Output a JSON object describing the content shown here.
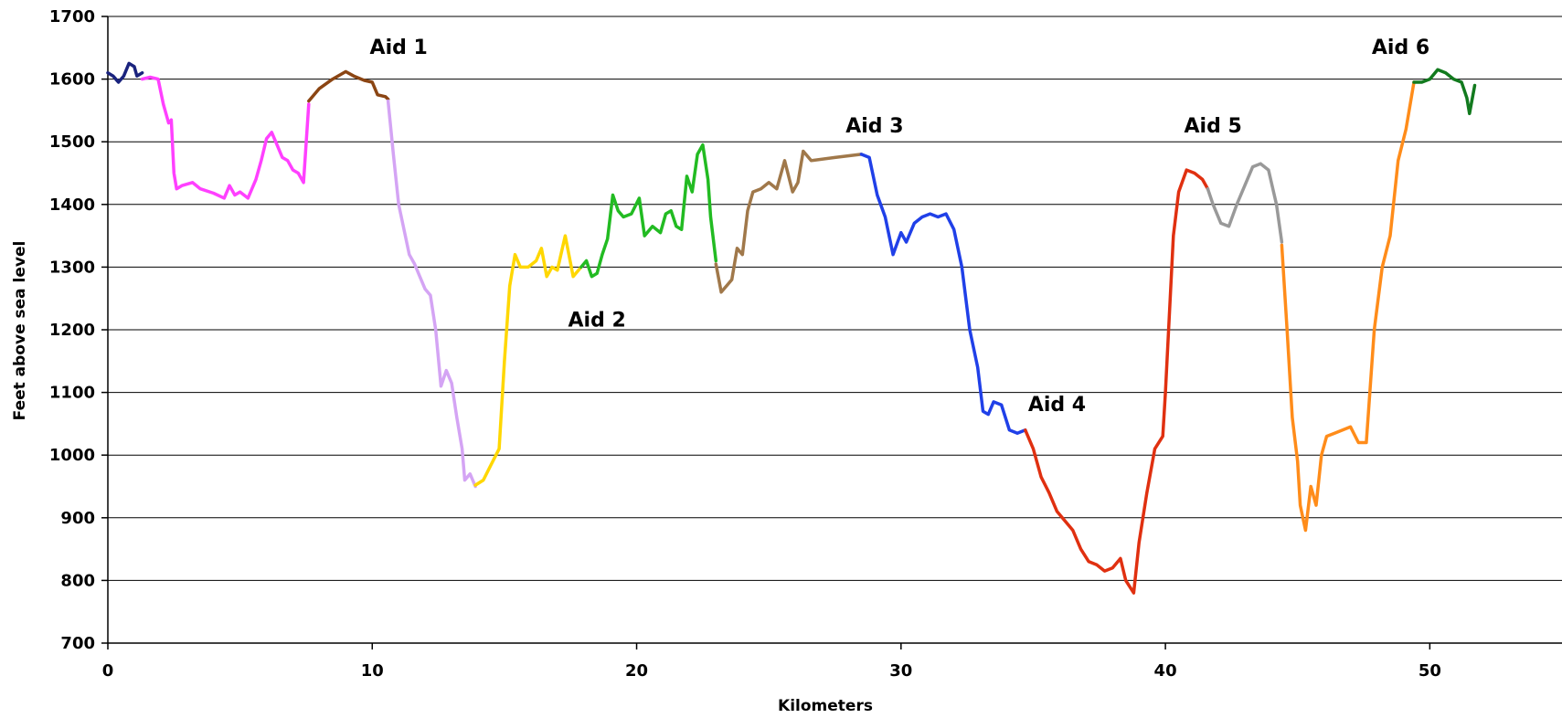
{
  "chart_data": {
    "type": "line",
    "title": "",
    "xlabel": "Kilometers",
    "ylabel": "Feet above sea level",
    "xlim": [
      0,
      55
    ],
    "ylim": [
      700,
      1700
    ],
    "x_ticks": [
      "0",
      "10",
      "20",
      "30",
      "40",
      "50"
    ],
    "x_tick_values": [
      0,
      10,
      20,
      30,
      40,
      50
    ],
    "y_ticks": [
      "700",
      "800",
      "900",
      "1000",
      "1100",
      "1200",
      "1300",
      "1400",
      "1500",
      "1600",
      "1700"
    ],
    "y_tick_values": [
      700,
      800,
      900,
      1000,
      1100,
      1200,
      1300,
      1400,
      1500,
      1600,
      1700
    ],
    "grid": "horizontal",
    "legend": "none",
    "annotations": [
      {
        "text": "Aid 1",
        "x": 11.0,
        "y": 1640
      },
      {
        "text": "Aid 2",
        "x": 18.5,
        "y": 1205
      },
      {
        "text": "Aid 3",
        "x": 29.0,
        "y": 1515
      },
      {
        "text": "Aid 4",
        "x": 35.9,
        "y": 1070
      },
      {
        "text": "Aid 5",
        "x": 41.8,
        "y": 1515
      },
      {
        "text": "Aid 6",
        "x": 48.9,
        "y": 1640
      }
    ],
    "series": [
      {
        "color": "#1a237e",
        "points": [
          [
            0,
            1610
          ],
          [
            0.2,
            1605
          ],
          [
            0.4,
            1595
          ],
          [
            0.6,
            1605
          ],
          [
            0.8,
            1625
          ],
          [
            1.0,
            1620
          ],
          [
            1.1,
            1605
          ],
          [
            1.3,
            1610
          ]
        ]
      },
      {
        "color": "#ff40ff",
        "points": [
          [
            1.3,
            1600
          ],
          [
            1.6,
            1603
          ],
          [
            1.9,
            1600
          ],
          [
            2.1,
            1560
          ],
          [
            2.3,
            1530
          ],
          [
            2.4,
            1535
          ],
          [
            2.5,
            1450
          ],
          [
            2.6,
            1425
          ],
          [
            2.8,
            1430
          ],
          [
            3.2,
            1435
          ],
          [
            3.5,
            1425
          ],
          [
            4.0,
            1418
          ],
          [
            4.4,
            1410
          ],
          [
            4.6,
            1430
          ],
          [
            4.8,
            1415
          ],
          [
            5.0,
            1420
          ],
          [
            5.3,
            1410
          ],
          [
            5.6,
            1440
          ],
          [
            5.8,
            1470
          ],
          [
            6.0,
            1505
          ],
          [
            6.2,
            1515
          ],
          [
            6.4,
            1495
          ],
          [
            6.6,
            1475
          ],
          [
            6.8,
            1470
          ],
          [
            7.0,
            1455
          ],
          [
            7.2,
            1450
          ],
          [
            7.4,
            1435
          ],
          [
            7.6,
            1560
          ]
        ]
      },
      {
        "color": "#8b4513",
        "points": [
          [
            7.6,
            1565
          ],
          [
            8.0,
            1585
          ],
          [
            8.5,
            1600
          ],
          [
            9.0,
            1612
          ],
          [
            9.3,
            1605
          ],
          [
            9.7,
            1598
          ],
          [
            10.0,
            1595
          ],
          [
            10.2,
            1575
          ],
          [
            10.5,
            1572
          ],
          [
            10.6,
            1568
          ]
        ]
      },
      {
        "color": "#d4a4f4",
        "points": [
          [
            10.6,
            1565
          ],
          [
            10.8,
            1480
          ],
          [
            11.0,
            1400
          ],
          [
            11.2,
            1360
          ],
          [
            11.4,
            1320
          ],
          [
            11.6,
            1305
          ],
          [
            11.8,
            1285
          ],
          [
            12.0,
            1265
          ],
          [
            12.2,
            1255
          ],
          [
            12.4,
            1200
          ],
          [
            12.6,
            1110
          ],
          [
            12.8,
            1135
          ],
          [
            13.0,
            1115
          ],
          [
            13.2,
            1060
          ],
          [
            13.4,
            1010
          ],
          [
            13.5,
            960
          ],
          [
            13.7,
            970
          ],
          [
            13.9,
            950
          ]
        ]
      },
      {
        "color": "#ffd700",
        "points": [
          [
            13.9,
            952
          ],
          [
            14.2,
            960
          ],
          [
            14.5,
            985
          ],
          [
            14.8,
            1010
          ],
          [
            15.0,
            1150
          ],
          [
            15.2,
            1270
          ],
          [
            15.4,
            1320
          ],
          [
            15.6,
            1300
          ],
          [
            15.9,
            1300
          ],
          [
            16.2,
            1310
          ],
          [
            16.4,
            1330
          ],
          [
            16.6,
            1285
          ],
          [
            16.8,
            1300
          ],
          [
            17.0,
            1295
          ],
          [
            17.3,
            1350
          ],
          [
            17.6,
            1285
          ],
          [
            17.9,
            1300
          ]
        ]
      },
      {
        "color": "#22bb22",
        "points": [
          [
            17.9,
            1300
          ],
          [
            18.1,
            1310
          ],
          [
            18.3,
            1285
          ],
          [
            18.5,
            1290
          ],
          [
            18.7,
            1320
          ],
          [
            18.9,
            1345
          ],
          [
            19.1,
            1415
          ],
          [
            19.3,
            1390
          ],
          [
            19.5,
            1380
          ],
          [
            19.8,
            1385
          ],
          [
            20.1,
            1410
          ],
          [
            20.3,
            1350
          ],
          [
            20.6,
            1365
          ],
          [
            20.9,
            1355
          ],
          [
            21.1,
            1385
          ],
          [
            21.3,
            1390
          ],
          [
            21.5,
            1365
          ],
          [
            21.7,
            1360
          ],
          [
            21.9,
            1445
          ],
          [
            22.1,
            1420
          ],
          [
            22.3,
            1480
          ],
          [
            22.5,
            1495
          ],
          [
            22.7,
            1440
          ],
          [
            22.8,
            1380
          ],
          [
            23.0,
            1310
          ]
        ]
      },
      {
        "color": "#a0784a",
        "points": [
          [
            23.0,
            1305
          ],
          [
            23.2,
            1260
          ],
          [
            23.4,
            1270
          ],
          [
            23.6,
            1280
          ],
          [
            23.8,
            1330
          ],
          [
            24.0,
            1320
          ],
          [
            24.2,
            1390
          ],
          [
            24.4,
            1420
          ],
          [
            24.7,
            1425
          ],
          [
            25.0,
            1435
          ],
          [
            25.3,
            1425
          ],
          [
            25.6,
            1470
          ],
          [
            25.9,
            1420
          ],
          [
            26.1,
            1435
          ],
          [
            26.3,
            1485
          ],
          [
            26.6,
            1470
          ],
          [
            27.5,
            1475
          ],
          [
            28.5,
            1480
          ]
        ]
      },
      {
        "color": "#2040e8",
        "points": [
          [
            28.5,
            1480
          ],
          [
            28.8,
            1475
          ],
          [
            29.1,
            1415
          ],
          [
            29.4,
            1380
          ],
          [
            29.7,
            1320
          ],
          [
            30.0,
            1355
          ],
          [
            30.2,
            1340
          ],
          [
            30.5,
            1370
          ],
          [
            30.8,
            1380
          ],
          [
            31.1,
            1385
          ],
          [
            31.4,
            1380
          ],
          [
            31.7,
            1385
          ],
          [
            32.0,
            1360
          ],
          [
            32.3,
            1300
          ],
          [
            32.6,
            1200
          ],
          [
            32.9,
            1140
          ],
          [
            33.1,
            1070
          ],
          [
            33.3,
            1065
          ],
          [
            33.5,
            1085
          ],
          [
            33.8,
            1080
          ],
          [
            34.1,
            1040
          ],
          [
            34.4,
            1035
          ],
          [
            34.7,
            1040
          ]
        ]
      },
      {
        "color": "#e03010",
        "points": [
          [
            34.7,
            1040
          ],
          [
            35.0,
            1010
          ],
          [
            35.3,
            965
          ],
          [
            35.6,
            940
          ],
          [
            35.9,
            910
          ],
          [
            36.2,
            895
          ],
          [
            36.5,
            880
          ],
          [
            36.8,
            850
          ],
          [
            37.1,
            830
          ],
          [
            37.4,
            825
          ],
          [
            37.7,
            815
          ],
          [
            38.0,
            820
          ],
          [
            38.3,
            835
          ],
          [
            38.5,
            800
          ],
          [
            38.8,
            780
          ],
          [
            39.0,
            860
          ],
          [
            39.3,
            940
          ],
          [
            39.6,
            1010
          ],
          [
            39.9,
            1030
          ],
          [
            40.0,
            1100
          ],
          [
            40.3,
            1350
          ],
          [
            40.5,
            1420
          ],
          [
            40.8,
            1455
          ],
          [
            41.1,
            1450
          ],
          [
            41.4,
            1440
          ],
          [
            41.6,
            1425
          ]
        ]
      },
      {
        "color": "#999999",
        "points": [
          [
            41.6,
            1425
          ],
          [
            41.8,
            1400
          ],
          [
            42.1,
            1370
          ],
          [
            42.4,
            1365
          ],
          [
            42.7,
            1400
          ],
          [
            43.0,
            1430
          ],
          [
            43.3,
            1460
          ],
          [
            43.6,
            1465
          ],
          [
            43.9,
            1455
          ],
          [
            44.2,
            1400
          ],
          [
            44.4,
            1340
          ]
        ]
      },
      {
        "color": "#ff8c1a",
        "points": [
          [
            44.4,
            1335
          ],
          [
            44.6,
            1200
          ],
          [
            44.8,
            1060
          ],
          [
            45.0,
            990
          ],
          [
            45.1,
            920
          ],
          [
            45.3,
            880
          ],
          [
            45.5,
            950
          ],
          [
            45.7,
            920
          ],
          [
            45.9,
            1000
          ],
          [
            46.1,
            1030
          ],
          [
            46.4,
            1035
          ],
          [
            46.7,
            1040
          ],
          [
            47.0,
            1045
          ],
          [
            47.3,
            1020
          ],
          [
            47.6,
            1020
          ],
          [
            47.9,
            1200
          ],
          [
            48.2,
            1300
          ],
          [
            48.5,
            1350
          ],
          [
            48.8,
            1470
          ],
          [
            49.1,
            1520
          ],
          [
            49.4,
            1595
          ]
        ]
      },
      {
        "color": "#127a1e",
        "points": [
          [
            49.4,
            1595
          ],
          [
            49.7,
            1595
          ],
          [
            50.0,
            1600
          ],
          [
            50.3,
            1615
          ],
          [
            50.6,
            1610
          ],
          [
            50.9,
            1600
          ],
          [
            51.2,
            1595
          ],
          [
            51.4,
            1570
          ],
          [
            51.5,
            1545
          ],
          [
            51.7,
            1590
          ]
        ]
      }
    ]
  }
}
